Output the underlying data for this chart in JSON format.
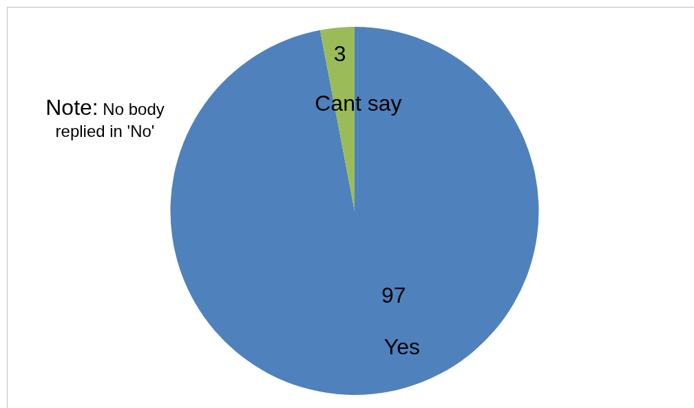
{
  "chart_data": {
    "type": "pie",
    "categories": [
      "Yes",
      "Cant say"
    ],
    "values": [
      97,
      3
    ],
    "colors": [
      "#4f81bd",
      "#9bbb59"
    ],
    "data_labels": true,
    "legend": false,
    "annotations": [
      "Note: No body replied in 'No'"
    ]
  }
}
